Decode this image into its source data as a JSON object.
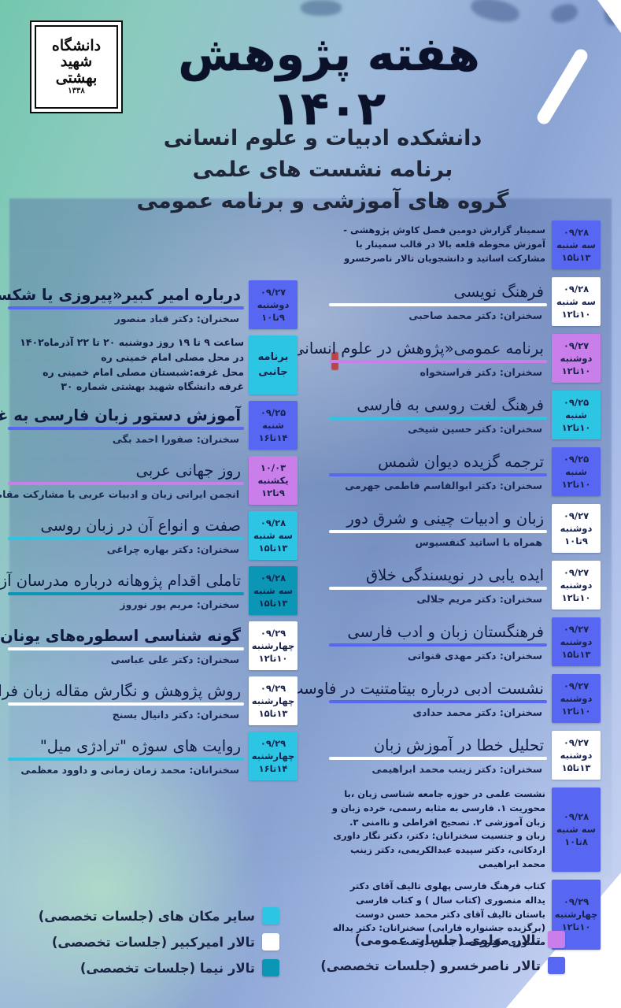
{
  "header": {
    "logo_lines": [
      "دانشگاه",
      "شهید",
      "بهشتی"
    ],
    "logo_year": "۱۳۳۸",
    "title": "هفته پژوهش ۱۴۰۲",
    "subtitle1": "دانشکده ادبیات و علوم انسانی",
    "subtitle2": "برنامه نشست های علمی",
    "subtitle3": "گروه های آموزشی و برنامه عمومی"
  },
  "colors": {
    "naserkhosrow": "#5767f2",
    "molavi": "#c97ee9",
    "other": "#2cc6e4",
    "nima": "#0a96b4",
    "amirkabir": "#ffffff"
  },
  "right_column": [
    {
      "kind": "text",
      "venue": "naserkhosrow",
      "date": "۰۹/۲۸",
      "day": "سه شنبه",
      "time": "۱۳تا۱۵",
      "text": "سمینار گزارش دومین فصل کاوش پژوهشی - آموزش محوطه قلعه بالا در قالب سمینار با مشارکت اساتید و دانشجویان تالار ناصرخسرو"
    },
    {
      "kind": "event",
      "venue": "amirkabir",
      "date": "۰۹/۲۸",
      "day": "سه شنبه",
      "time": "۱۰تا۱۲",
      "title": "فرهنگ نویسی",
      "speaker": "سخنران: دکتر محمد صاحبی"
    },
    {
      "kind": "event",
      "venue": "molavi",
      "date": "۰۹/۲۷",
      "day": "دوشنبه",
      "time": "۱۰تا۱۲",
      "title": "برنامه عمومی«پژوهش در علوم انسانی»",
      "speaker": "سخنران: دکتر فراستخواه"
    },
    {
      "kind": "event",
      "venue": "other",
      "date": "۰۹/۲۵",
      "day": "شنبه",
      "time": "۱۰تا۱۲",
      "title": "فرهنگ لغت روسی به فارسی",
      "speaker": "سخنران: دکتر حسین شیخی"
    },
    {
      "kind": "event",
      "venue": "naserkhosrow",
      "date": "۰۹/۲۵",
      "day": "شنبه",
      "time": "۱۰تا۱۲",
      "title": "ترجمه گزیده دیوان شمس",
      "speaker": "سخنران: دکتر ابوالقاسم فاطمی جهرمی"
    },
    {
      "kind": "event",
      "venue": "amirkabir",
      "date": "۰۹/۲۷",
      "day": "دوشنبه",
      "time": "۹تا۱۰",
      "title": "زبان و ادبیات چینی و شرق دور",
      "speaker": "همراه با اساتید کنفسیوس"
    },
    {
      "kind": "event",
      "venue": "amirkabir",
      "date": "۰۹/۲۷",
      "day": "دوشنبه",
      "time": "۱۰تا۱۲",
      "title": "ایده یابی در نویسندگی خلاق",
      "speaker": "سخنران: دکتر مریم جلالی"
    },
    {
      "kind": "event",
      "venue": "naserkhosrow",
      "date": "۰۹/۲۷",
      "day": "دوشنبه",
      "time": "۱۳تا۱۵",
      "title": "فرهنگستان زبان و ادب فارسی",
      "speaker": "سخنران: دکتر مهدی قنواتی"
    },
    {
      "kind": "event",
      "venue": "naserkhosrow",
      "date": "۰۹/۲۷",
      "day": "دوشنبه",
      "time": "۱۰تا۱۲",
      "title": "نشست ادبی درباره بیتامتنیت در فاوست",
      "speaker": "سخنران: دکتر محمد حدادی"
    },
    {
      "kind": "event",
      "venue": "amirkabir",
      "date": "۰۹/۲۷",
      "day": "دوشنبه",
      "time": "۱۳تا۱۵",
      "title": "تحلیل خطا در آموزش زبان",
      "speaker": "سخنران: دکتر زینب محمد ابراهیمی"
    },
    {
      "kind": "text",
      "venue": "naserkhosrow",
      "date": "۰۹/۲۸",
      "day": "سه شنبه",
      "time": "۸تا۱۰",
      "text": "نشست علمی در حوزه جامعه شناسی زبان ،با محوریت ۱. فارسی به مثابه رسمی، خرده زبان و زبان آموزشی ۲. تصحیح افراطی و ناامنی ۳. زبان و جنسیت سخنرانان: دکتر، دکتر نگار داوری اردکانی، دکتر سپیده عبدالکریمی، دکتر زینب محمد ابراهیمی"
    },
    {
      "kind": "text",
      "venue": "naserkhosrow",
      "date": "۰۹/۲۹",
      "day": "چهارشنبه",
      "time": "۱۰تا۱۲",
      "text": "کتاب فرهنگ فارسی پهلوی تالیف آقای دکتر یداله منصوری (کتاب سال ) و کتاب فارسی باستان تالیف آقای دکتر محمد حسن دوست (برگزیده جشنواره فارابی) سخنرانان: دکتر یداله منصوری دکتر محمد حسن دوست"
    }
  ],
  "left_column": [
    {
      "kind": "event",
      "venue": "naserkhosrow",
      "date": "۰۹/۲۷",
      "day": "دوشنبه",
      "time": "۹تا۱۰",
      "bold": true,
      "title": "درباره امیر کبیر«پیروزی یا شکست قاجاریه»",
      "speaker": "سخنران: دکتر قباد منصور"
    },
    {
      "kind": "side",
      "venue": "other",
      "box_label": "برنامه جانبی",
      "lines": [
        "ساعت ۹ تا ۱۹ روز دوشنبه ۲۰ تا ۲۲ آذرماه۱۴۰۲",
        "در محل مصلی امام خمینی ره",
        "محل غرفه:شبستان مصلی امام خمینی ره",
        "غرفه دانشگاه شهید بهشتی شماره ۳۰"
      ]
    },
    {
      "kind": "event",
      "venue": "naserkhosrow",
      "date": "۰۹/۲۵",
      "day": "شنبه",
      "time": "۱۴تا۱۶",
      "bold": true,
      "title": "آموزش دستور زبان فارسی به غیر فارسی زبانان",
      "speaker": "سخنران: صفورا احمد بگی"
    },
    {
      "kind": "event",
      "venue": "molavi",
      "date": "۱۰/۰۳",
      "day": "یکشنبه",
      "time": "۹تا۱۲",
      "title": "روز جهانی عربی",
      "speaker": "انجمن ایرانی زبان و ادبیات عربی با مشارکت مقامات کشورهای عربی"
    },
    {
      "kind": "event",
      "venue": "other",
      "date": "۰۹/۲۸",
      "day": "سه شنبه",
      "time": "۱۳تا۱۵",
      "title": "صفت و انواع آن در زبان روسی",
      "speaker": "سخنران: دکتر بهاره چراغی"
    },
    {
      "kind": "event",
      "venue": "nima",
      "date": "۰۹/۲۸",
      "day": "سه شنبه",
      "time": "۱۳تا۱۵",
      "title": "تاملی اقدام پژوهانه درباره مدرسان آزفا",
      "speaker": "سخنران: مریم پور نوروز"
    },
    {
      "kind": "event",
      "venue": "amirkabir",
      "date": "۰۹/۲۹",
      "day": "چهارشنبه",
      "time": "۱۰تا۱۲",
      "bold": true,
      "title": "گونه شناسی اسطوره‌های یونان  باستان",
      "speaker": "سخنران: دکتر علی عباسی"
    },
    {
      "kind": "event",
      "venue": "amirkabir",
      "date": "۰۹/۲۹",
      "day": "چهارشنبه",
      "time": "۱۳تا۱۵",
      "title": "روش پژوهش و نگارش مقاله زبان فرانسه",
      "speaker": "سخنران: دکتر دانیال بسنج"
    },
    {
      "kind": "event",
      "venue": "other",
      "date": "۰۹/۲۹",
      "day": "چهارشنبه",
      "time": "۱۴تا۱۶",
      "title": "روایت های سوژه \"ترادژی میل\"",
      "speaker": "سخنرانان: محمد زمان زمانی و داوود معظمی"
    }
  ],
  "legend": {
    "left": [
      {
        "venue": "other",
        "label": "سایر مکان های (جلسات تخصصی)"
      },
      {
        "venue": "amirkabir",
        "label": "تالار امیرکبیر (جلسات تخصصی)"
      },
      {
        "venue": "nima",
        "label": "تالار نیما (جلسات تخصصی)"
      }
    ],
    "right": [
      {
        "venue": "molavi",
        "label": "تالار مولوی (جلسات عمومی)"
      },
      {
        "venue": "naserkhosrow",
        "label": "تالار ناصرخسرو (جلسات تخصصی)"
      }
    ]
  }
}
